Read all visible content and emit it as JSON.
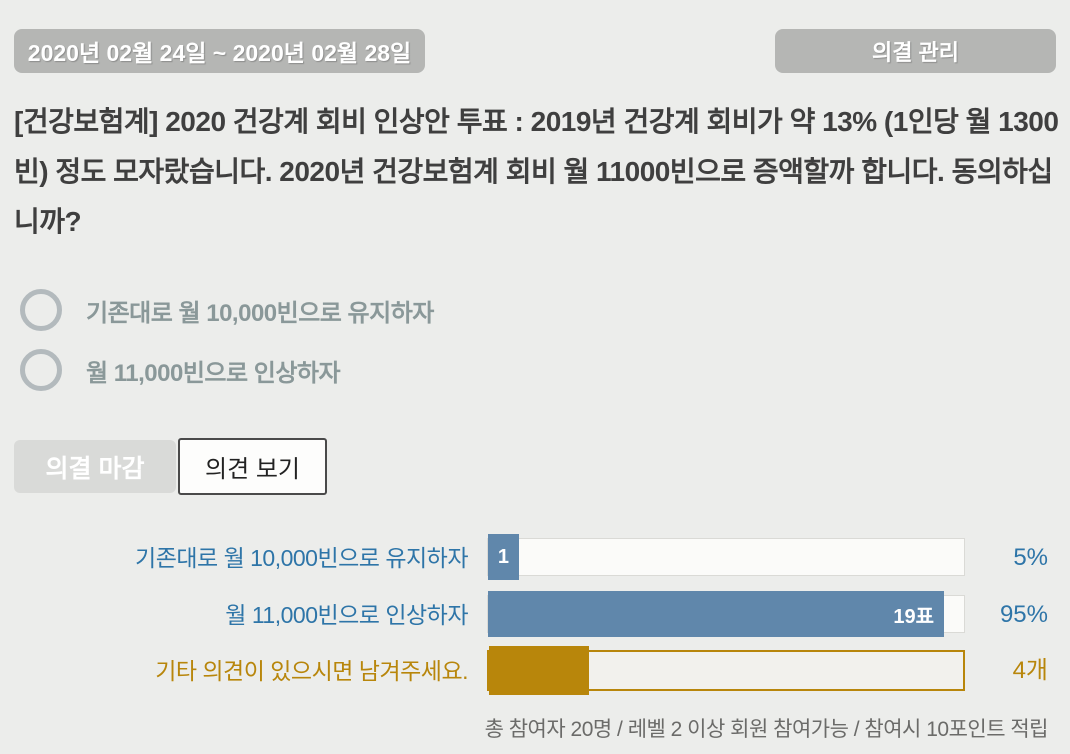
{
  "header": {
    "date_range": "2020년 02월 24일 ~ 2020년 02월 28일",
    "manage_button_label": "의결 관리"
  },
  "question": {
    "title": "[건강보험계] 2020 건강계 회비 인상안 투표 : 2019년 건강계 회비가 약 13% (1인당 월 1300빈) 정도 모자랐습니다. 2020년 건강보험계 회비 월 11000빈으로 증액할까 합니다. 동의하십니까?"
  },
  "options": [
    {
      "label": "기존대로 월 10,000빈으로 유지하자",
      "selected": false
    },
    {
      "label": "월 11,000빈으로 인상하자",
      "selected": false
    }
  ],
  "actions": {
    "close_button_label": "의결 마감",
    "view_comments_button_label": "의견 보기"
  },
  "chart_data": {
    "type": "bar",
    "orientation": "horizontal",
    "total_participants": 20,
    "rows": [
      {
        "category": "기존대로 월 10,000빈으로 유지하자",
        "votes": 1,
        "percent": 5,
        "bar_label": "1",
        "right_label": "5%",
        "fill_pct": 6.5,
        "color": "#6087ab"
      },
      {
        "category": "월 11,000빈으로 인상하자",
        "votes": 19,
        "percent": 95,
        "bar_label": "19표",
        "right_label": "95%",
        "fill_pct": 95.8,
        "color": "#6087ab"
      },
      {
        "category": "기타 의견이 있으시면 남겨주세요.",
        "count": 4,
        "bar_label": "",
        "right_label": "4개",
        "fill_pct": 21,
        "color": "#b8860b"
      }
    ]
  },
  "footer": {
    "note": "총 참여자 20명 / 레벨 2 이상 회원 참여가능 / 참여시 10포인트 적립"
  },
  "colors": {
    "background": "#ecedeb",
    "header_button": "#b5b6b4",
    "title_text": "#3f3f3f",
    "option_text": "#8a9899",
    "result_blue": "#2e75a8",
    "bar_blue": "#6087ab",
    "gold": "#b8860b",
    "footer_text": "#6b6b69"
  }
}
